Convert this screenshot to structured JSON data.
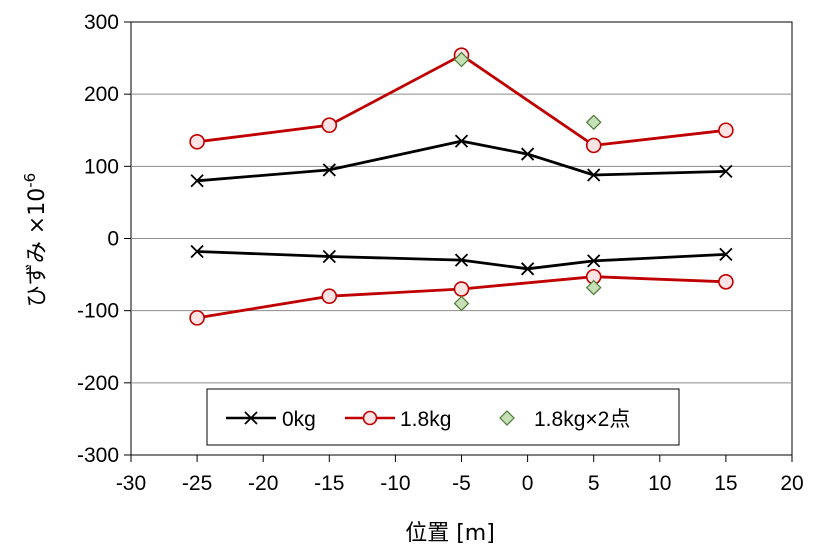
{
  "chart_data": {
    "type": "line",
    "xlabel": "位置 [m]",
    "ylabel_main": "ひずみ ×10",
    "ylabel_exp": "-6",
    "xlim": [
      -30,
      20
    ],
    "ylim": [
      -300,
      300
    ],
    "x_ticks": [
      -30,
      -25,
      -20,
      -15,
      -10,
      -5,
      0,
      5,
      10,
      15,
      20
    ],
    "y_ticks": [
      300,
      200,
      100,
      0,
      -100,
      -200,
      -300
    ],
    "grid": true,
    "legend_position": "bottom-center",
    "legend": [
      {
        "key": "zero",
        "label": "0kg"
      },
      {
        "key": "oneeight",
        "label": "1.8kg"
      },
      {
        "key": "twopoint",
        "label": "1.8kg×2点"
      }
    ],
    "series": [
      {
        "key": "zero",
        "marker": "x",
        "color": "#000000",
        "x": [
          -25,
          -15,
          -5,
          0,
          5,
          15
        ],
        "y": [
          80,
          95,
          135,
          117,
          88,
          93
        ]
      },
      {
        "key": "zero",
        "marker": "x",
        "color": "#000000",
        "x": [
          -25,
          -15,
          -5,
          0,
          5,
          15
        ],
        "y": [
          -18,
          -25,
          -30,
          -42,
          -31,
          -22
        ]
      },
      {
        "key": "oneeight",
        "marker": "circle",
        "color": "#c00000",
        "x": [
          -25,
          -15,
          -5,
          5,
          15
        ],
        "y": [
          134,
          157,
          254,
          129,
          150
        ]
      },
      {
        "key": "oneeight",
        "marker": "circle",
        "color": "#c00000",
        "x": [
          -25,
          -15,
          -5,
          5,
          15
        ],
        "y": [
          -110,
          -80,
          -70,
          -53,
          -60
        ]
      },
      {
        "key": "twopoint",
        "marker": "diamond",
        "color": "#a9d18e",
        "line": false,
        "x": [
          -5,
          5,
          -5,
          5
        ],
        "y": [
          248,
          161,
          -90,
          -68
        ]
      }
    ]
  }
}
